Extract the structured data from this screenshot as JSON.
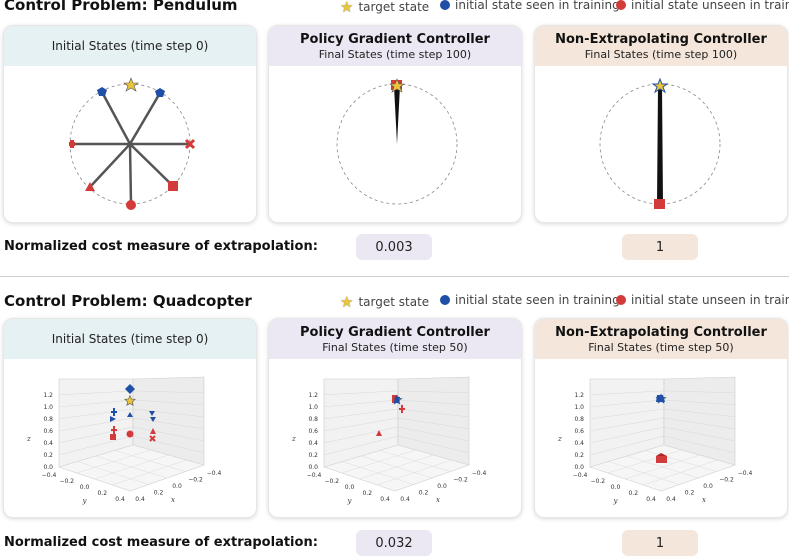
{
  "pendulum": {
    "title": "Control Problem: Pendulum",
    "legend": [
      {
        "label": "target state",
        "color": "#e8c53a"
      },
      {
        "label": "initial state seen in training",
        "color": "#1f4fa6"
      },
      {
        "label": "initial state unseen in training",
        "color": "#d33b3b"
      }
    ],
    "panels": [
      {
        "title": "Initial States (time step 0)",
        "subtitle": ""
      },
      {
        "title": "Policy Gradient Controller",
        "subtitle": "Final States (time step 100)"
      },
      {
        "title": "Non-Extrapolating Controller",
        "subtitle": "Final States (time step 100)"
      }
    ],
    "cost_label": "Normalized cost measure of extrapolation:",
    "costs": {
      "policy_gradient": "0.003",
      "non_extrapolating": "1"
    }
  },
  "quadcopter": {
    "title": "Control Problem: Quadcopter",
    "legend": [
      {
        "label": "target state",
        "color": "#e8c53a"
      },
      {
        "label": "initial state seen in training",
        "color": "#1f4fa6"
      },
      {
        "label": "initial state unseen in training",
        "color": "#d33b3b"
      }
    ],
    "panels": [
      {
        "title": "Initial States (time step 0)",
        "subtitle": ""
      },
      {
        "title": "Policy Gradient Controller",
        "subtitle": "Final States (time step 50)"
      },
      {
        "title": "Non-Extrapolating Controller",
        "subtitle": "Final States (time step 50)"
      }
    ],
    "axes": {
      "z_ticks": [
        "0.0",
        "0.2",
        "0.4",
        "0.6",
        "0.8",
        "1.0",
        "1.2"
      ],
      "y_ticks": [
        "−0.4",
        "−0.2",
        "0.0",
        "0.2",
        "0.4"
      ],
      "x_ticks": [
        "0.4",
        "0.2",
        "0.0",
        "−0.2",
        "−0.4"
      ],
      "x_label": "x",
      "y_label": "y",
      "z_label": "z"
    },
    "cost_label": "Normalized cost measure of extrapolation:",
    "costs": {
      "policy_gradient": "0.032",
      "non_extrapolating": "1"
    }
  },
  "colors": {
    "target": "#e8c53a",
    "seen": "#1f4fa6",
    "unseen": "#d33b3b",
    "teal_header": "#e6f1f3",
    "lavender_header": "#ebe8f3",
    "peach_header": "#f4e6da"
  }
}
